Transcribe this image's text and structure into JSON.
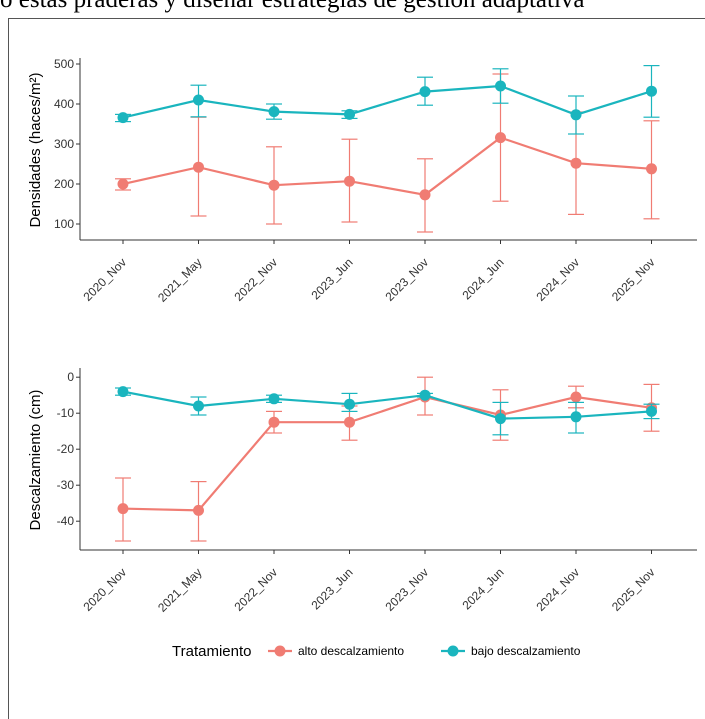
{
  "page_text": {
    "top_line": "o estas praderas y diseñar estrategias de gestión adaptativa"
  },
  "colors": {
    "alto": "#F07C73",
    "bajo": "#1AB5BE",
    "axis": "#333333"
  },
  "chart_data": [
    {
      "type": "line",
      "ylabel": "Densidades (haces/m²)",
      "xlabel": "",
      "ylim": [
        60,
        510
      ],
      "yticks": [
        100,
        200,
        300,
        400,
        500
      ],
      "categories": [
        "2020_Nov",
        "2021_May",
        "2022_Nov",
        "2023_Jun",
        "2023_Nov",
        "2024_Jun",
        "2024_Nov",
        "2025_Nov"
      ],
      "grid": false,
      "series": [
        {
          "name": "alto descalzamiento",
          "values": [
            200,
            242,
            197,
            207,
            173,
            316,
            252,
            238
          ],
          "err_low": [
            185,
            120,
            100,
            105,
            80,
            157,
            124,
            113
          ],
          "err_high": [
            213,
            367,
            293,
            312,
            263,
            475,
            380,
            358
          ]
        },
        {
          "name": "bajo descalzamiento",
          "values": [
            366,
            410,
            381,
            374,
            431,
            445,
            373,
            432
          ],
          "err_low": [
            356,
            368,
            362,
            364,
            397,
            402,
            325,
            367
          ],
          "err_high": [
            374,
            447,
            400,
            383,
            467,
            488,
            420,
            496
          ]
        }
      ]
    },
    {
      "type": "line",
      "ylabel": "Descalzamiento (cm)",
      "xlabel": "",
      "ylim": [
        -48,
        2
      ],
      "yticks": [
        0,
        -10,
        -20,
        -30,
        -40
      ],
      "categories": [
        "2020_Nov",
        "2021_May",
        "2022_Nov",
        "2023_Jun",
        "2023_Nov",
        "2024_Jun",
        "2024_Nov",
        "2025_Nov"
      ],
      "grid": false,
      "series": [
        {
          "name": "alto descalzamiento",
          "values": [
            -36.5,
            -37,
            -12.5,
            -12.5,
            -5.5,
            -10.5,
            -5.5,
            -8.5
          ],
          "err_low": [
            -45.5,
            -45.5,
            -15.5,
            -17.5,
            -10.5,
            -17.5,
            -8.5,
            -15
          ],
          "err_high": [
            -28,
            -29,
            -9.5,
            -8,
            0,
            -3.5,
            -2.5,
            -2
          ]
        },
        {
          "name": "bajo descalzamiento",
          "values": [
            -4,
            -8,
            -6,
            -7.5,
            -5,
            -11.5,
            -11,
            -9.5
          ],
          "err_low": [
            -5,
            -10.5,
            -7,
            -9.5,
            -5.5,
            -16,
            -15.5,
            -11.5
          ],
          "err_high": [
            -3,
            -5.5,
            -5,
            -4.5,
            -4.5,
            -7,
            -7,
            -7.5
          ]
        }
      ]
    }
  ],
  "legend": {
    "title": "Tratamiento",
    "items": [
      "alto descalzamiento",
      "bajo descalzamiento"
    ],
    "placement": "bottom"
  }
}
